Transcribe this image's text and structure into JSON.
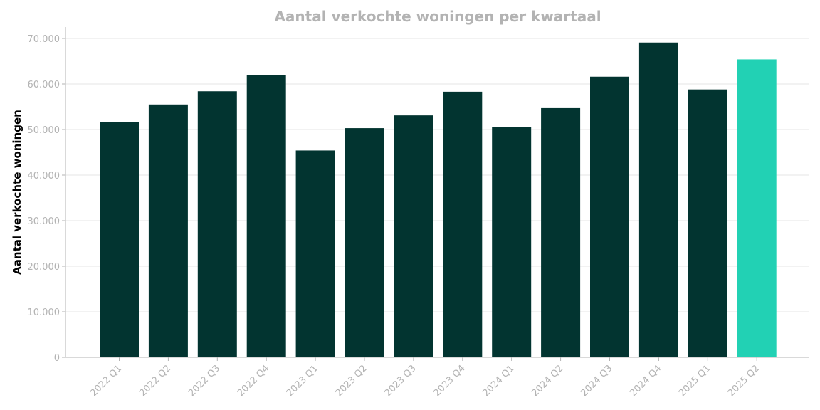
{
  "chart_data": {
    "type": "bar",
    "title": "Aantal verkochte woningen per kwartaal",
    "xlabel": "",
    "ylabel": "Aantal verkochte woningen",
    "categories": [
      "2022 Q1",
      "2022 Q2",
      "2022 Q3",
      "2022 Q4",
      "2023 Q1",
      "2023 Q2",
      "2023 Q3",
      "2023 Q4",
      "2024 Q1",
      "2024 Q2",
      "2024 Q3",
      "2024 Q4",
      "2025 Q1",
      "2025 Q2"
    ],
    "values": [
      51700,
      55500,
      58400,
      62000,
      45400,
      50300,
      53100,
      58300,
      50500,
      54700,
      61600,
      69100,
      58800,
      65400
    ],
    "ylim": [
      0,
      72500
    ],
    "yticks": [
      0,
      10000,
      20000,
      30000,
      40000,
      50000,
      60000,
      70000
    ],
    "ytick_labels": [
      "0",
      "10.000",
      "20.000",
      "30.000",
      "40.000",
      "50.000",
      "60.000",
      "70.000"
    ],
    "grid": true,
    "legend": "none",
    "colors": {
      "bar": "#023430",
      "highlight": "#22d1b4",
      "title": "#b3b3b3",
      "tick": "#b3b3b3",
      "axis": "#b3b3b3",
      "grid": "#e6e6e6"
    },
    "highlight_category": "2025 Q2"
  }
}
